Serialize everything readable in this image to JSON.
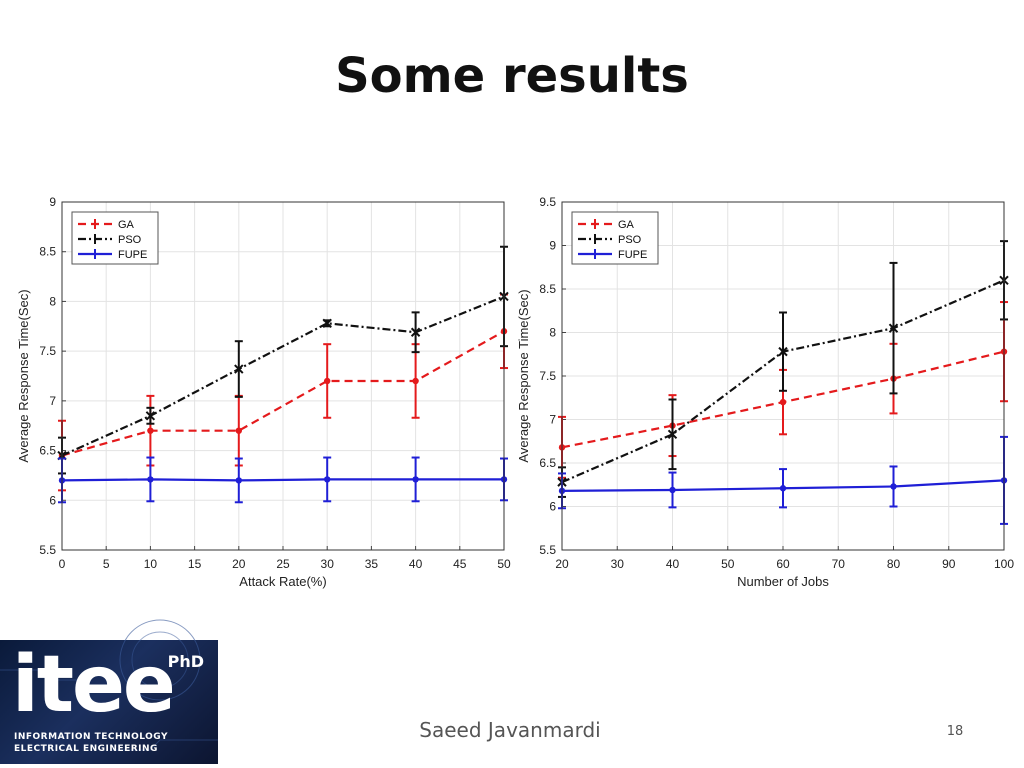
{
  "slide": {
    "title": "Some results",
    "author": "Saeed Javanmardi",
    "page_number": "18"
  },
  "logo": {
    "text": "itee",
    "degree": "PhD",
    "line1": "INFORMATION TECHNOLOGY",
    "line2": "ELECTRICAL ENGINEERING"
  },
  "colors": {
    "GA": "#e41a1c",
    "PSO": "#111111",
    "FUPE": "#1f1fd6"
  },
  "chart_data": [
    {
      "type": "line",
      "title": "",
      "xlabel": "Attack Rate(%)",
      "ylabel": "Average Response Time(Sec)",
      "xlim": [
        0,
        50
      ],
      "ylim": [
        5.5,
        9
      ],
      "xticks": [
        0,
        5,
        10,
        15,
        20,
        25,
        30,
        35,
        40,
        45,
        50
      ],
      "yticks": [
        5.5,
        6,
        6.5,
        7,
        7.5,
        8,
        8.5,
        9
      ],
      "grid": true,
      "legend_position": "top-left",
      "x": [
        0,
        10,
        20,
        30,
        40,
        50
      ],
      "series": [
        {
          "name": "GA",
          "style": "dashed",
          "values": [
            6.45,
            6.7,
            6.7,
            7.2,
            7.2,
            7.7
          ],
          "err": [
            0.35,
            0.35,
            0.35,
            0.37,
            0.37,
            0.37
          ]
        },
        {
          "name": "PSO",
          "style": "dashdot",
          "values": [
            6.45,
            6.85,
            7.32,
            7.78,
            7.69,
            8.05
          ],
          "err": [
            0.18,
            0.08,
            0.28,
            0.03,
            0.2,
            0.5
          ]
        },
        {
          "name": "FUPE",
          "style": "solid",
          "values": [
            6.2,
            6.21,
            6.2,
            6.21,
            6.21,
            6.21
          ],
          "err": [
            0.22,
            0.22,
            0.22,
            0.22,
            0.22,
            0.21
          ]
        }
      ]
    },
    {
      "type": "line",
      "title": "",
      "xlabel": "Number of Jobs",
      "ylabel": "Average Response Time(Sec)",
      "xlim": [
        20,
        100
      ],
      "ylim": [
        5.5,
        9.5
      ],
      "xticks": [
        20,
        30,
        40,
        50,
        60,
        70,
        80,
        90,
        100
      ],
      "yticks": [
        5.5,
        6,
        6.5,
        7,
        7.5,
        8,
        8.5,
        9,
        9.5
      ],
      "grid": true,
      "legend_position": "top-left",
      "x": [
        20,
        40,
        60,
        80,
        100
      ],
      "series": [
        {
          "name": "GA",
          "style": "dashed",
          "values": [
            6.68,
            6.93,
            7.2,
            7.47,
            7.78
          ],
          "err": [
            0.35,
            0.35,
            0.37,
            0.4,
            0.57
          ]
        },
        {
          "name": "PSO",
          "style": "dashdot",
          "values": [
            6.28,
            6.83,
            7.78,
            8.05,
            8.6
          ],
          "err": [
            0.17,
            0.4,
            0.45,
            0.75,
            0.45
          ]
        },
        {
          "name": "FUPE",
          "style": "solid",
          "values": [
            6.18,
            6.19,
            6.21,
            6.23,
            6.3
          ],
          "err": [
            0.2,
            0.2,
            0.22,
            0.23,
            0.5
          ]
        }
      ]
    }
  ]
}
